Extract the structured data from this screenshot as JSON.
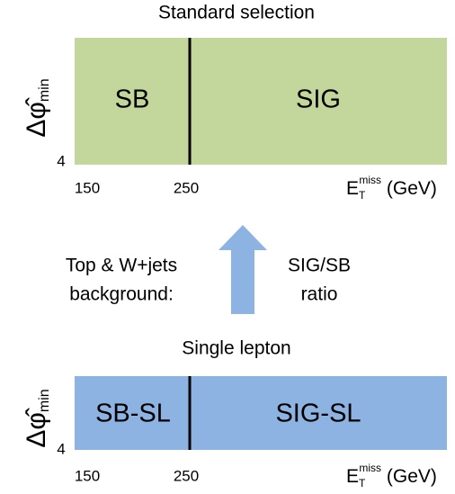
{
  "panels": [
    {
      "title": "Standard selection",
      "regions": [
        "SB",
        "SIG"
      ],
      "y_label": {
        "symbol": "Δφ̂",
        "subscript": "min"
      },
      "y_tick": "4",
      "x_ticks": [
        "150",
        "250"
      ],
      "x_label": {
        "symbol": "E",
        "subscript": "T",
        "superscript": "miss",
        "unit": " (GeV)"
      }
    },
    {
      "title": "Single lepton",
      "regions": [
        "SB-SL",
        "SIG-SL"
      ],
      "y_label": {
        "symbol": "Δφ̂",
        "subscript": "min"
      },
      "y_tick": "4",
      "x_ticks": [
        "150",
        "250"
      ],
      "x_label": {
        "symbol": "E",
        "subscript": "T",
        "superscript": "miss",
        "unit": " (GeV)"
      }
    }
  ],
  "left_note": [
    "Top & W+jets",
    "background:"
  ],
  "right_note": [
    "SIG/SB",
    "ratio"
  ]
}
